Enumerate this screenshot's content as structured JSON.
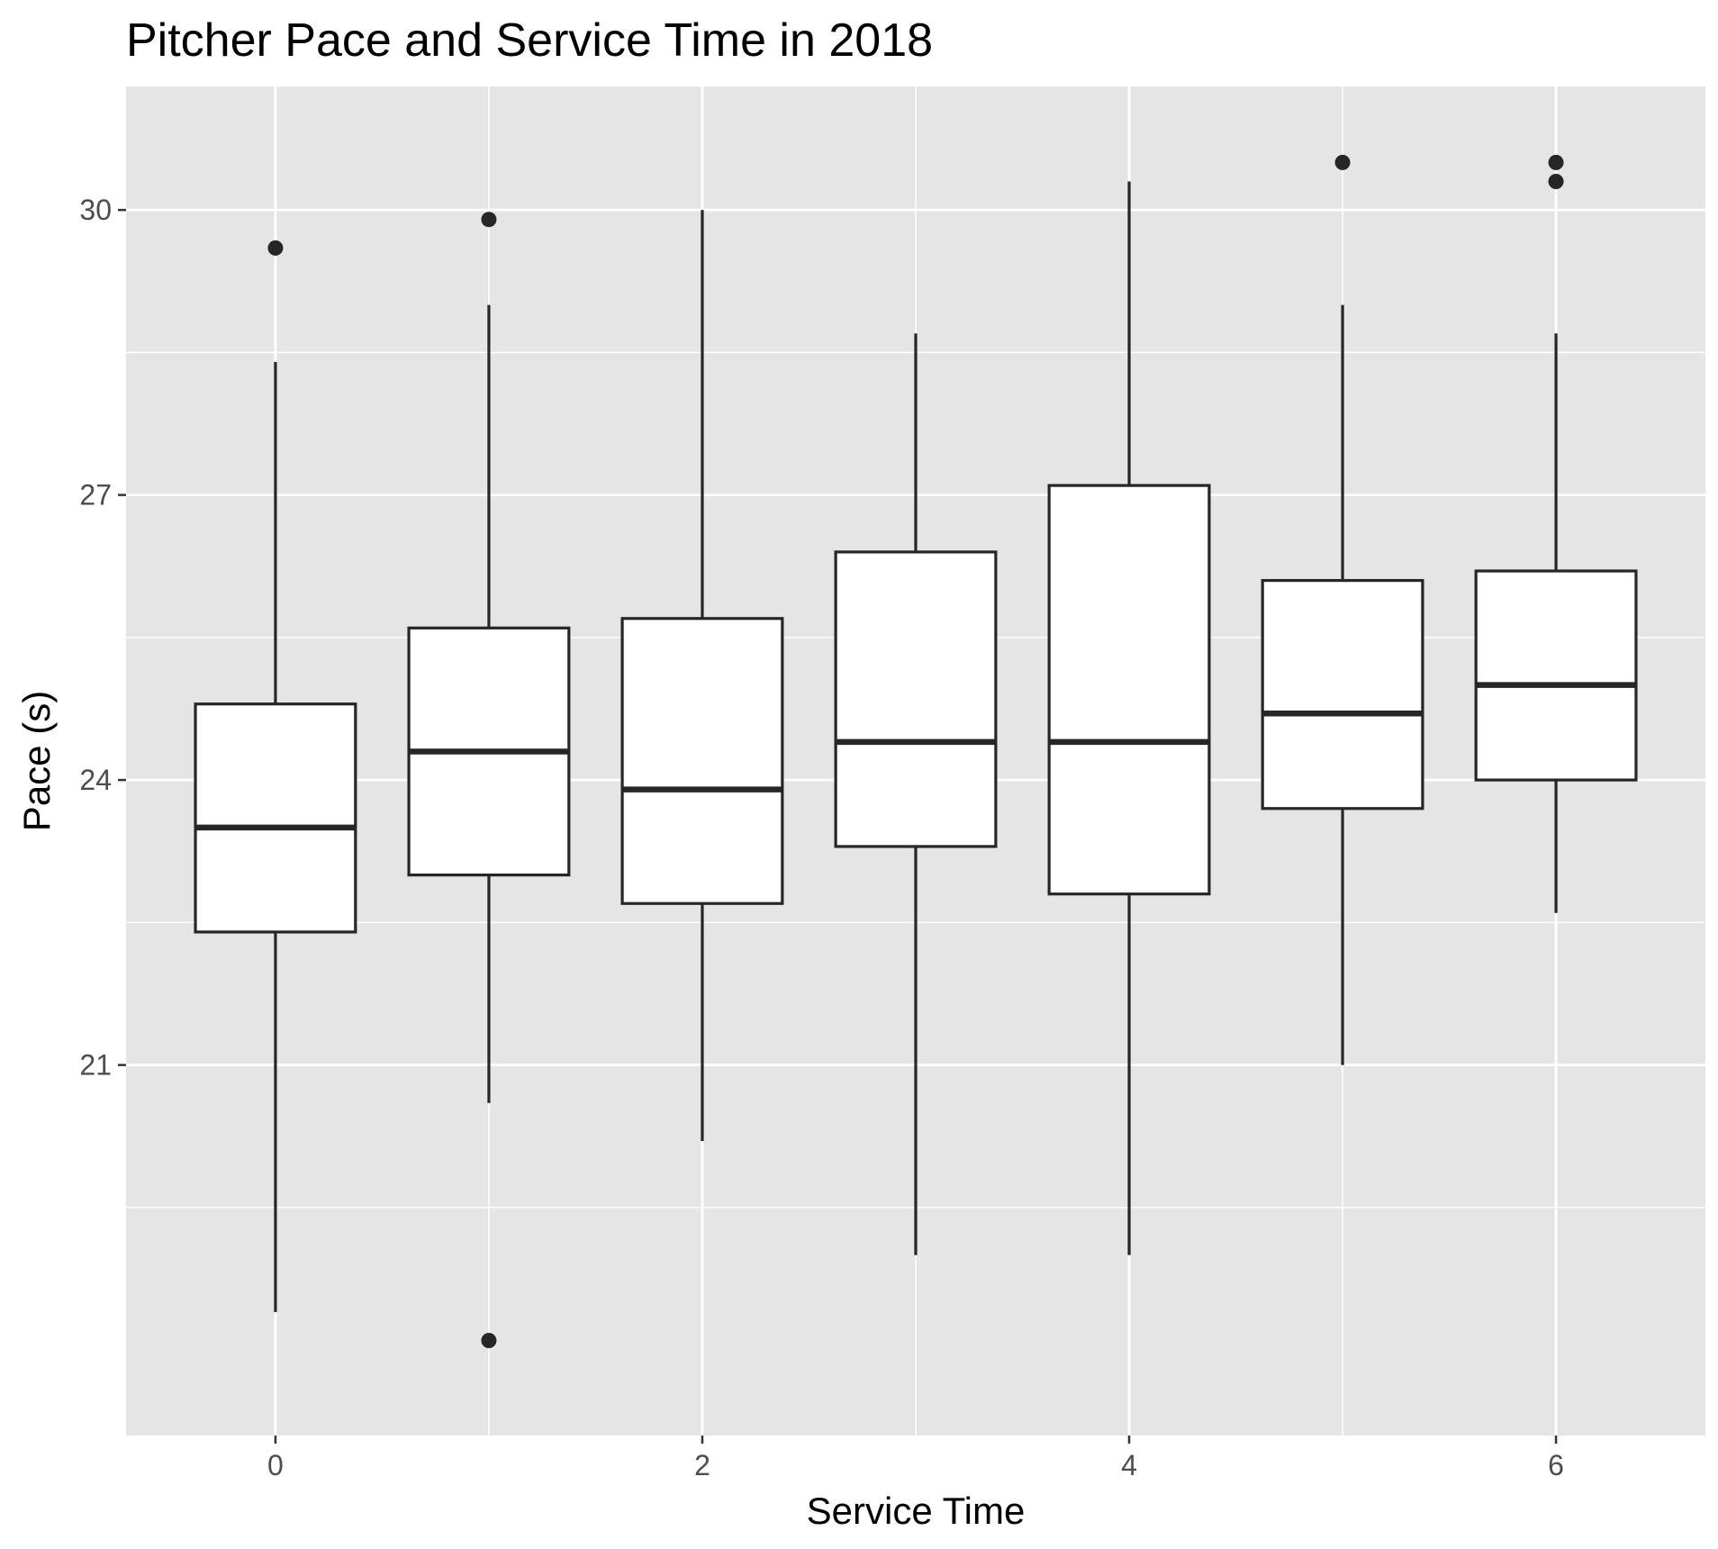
{
  "chart_data": {
    "type": "boxplot",
    "title": "Pitcher Pace and Service Time in 2018",
    "xlabel": "Service Time",
    "ylabel": "Pace (s)",
    "xlim": [
      -0.7,
      6.7
    ],
    "ylim": [
      17.1,
      31.3
    ],
    "x_ticks": [
      0,
      2,
      4,
      6
    ],
    "y_ticks": [
      21,
      24,
      27,
      30
    ],
    "grid": true,
    "background": "#e5e5e5",
    "grid_color": "#ffffff",
    "box_fill": "#ffffff",
    "line_color": "#262626",
    "boxes": [
      {
        "x": 0,
        "whisker_low": 18.4,
        "q1": 22.4,
        "median": 23.5,
        "q3": 24.8,
        "whisker_high": 28.4,
        "outliers": [
          29.6
        ]
      },
      {
        "x": 1,
        "whisker_low": 20.6,
        "q1": 23.0,
        "median": 24.3,
        "q3": 25.6,
        "whisker_high": 29.0,
        "outliers": [
          29.9,
          18.1
        ]
      },
      {
        "x": 2,
        "whisker_low": 20.2,
        "q1": 22.7,
        "median": 23.9,
        "q3": 25.7,
        "whisker_high": 30.0,
        "outliers": []
      },
      {
        "x": 3,
        "whisker_low": 19.0,
        "q1": 23.3,
        "median": 24.4,
        "q3": 26.4,
        "whisker_high": 28.7,
        "outliers": []
      },
      {
        "x": 4,
        "whisker_low": 19.0,
        "q1": 22.8,
        "median": 24.4,
        "q3": 27.1,
        "whisker_high": 30.3,
        "outliers": []
      },
      {
        "x": 5,
        "whisker_low": 21.0,
        "q1": 23.7,
        "median": 24.7,
        "q3": 26.1,
        "whisker_high": 29.0,
        "outliers": [
          30.5
        ]
      },
      {
        "x": 6,
        "whisker_low": 22.6,
        "q1": 24.0,
        "median": 25.0,
        "q3": 26.2,
        "whisker_high": 28.7,
        "outliers": [
          30.5,
          30.3
        ]
      }
    ]
  }
}
